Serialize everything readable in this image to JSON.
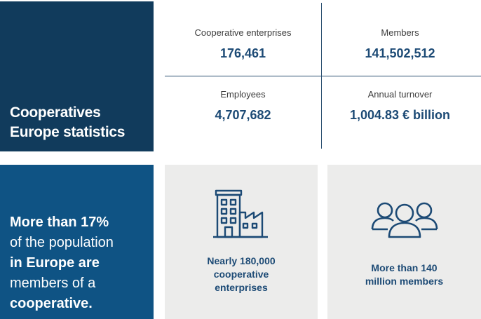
{
  "title": {
    "line1": "Cooperatives",
    "line2": "Europe statistics"
  },
  "stats": [
    {
      "label": "Cooperative enterprises",
      "value": "176,461"
    },
    {
      "label": "Members",
      "value": "141,502,512"
    },
    {
      "label": "Employees",
      "value": "4,707,682"
    },
    {
      "label": "Annual turnover",
      "value": "1,004.83 € billion"
    }
  ],
  "population": {
    "line1": "More than 17%",
    "line2": "of the population",
    "line3": "in Europe are",
    "line4": "members of a",
    "line5": "cooperative."
  },
  "cards": [
    {
      "icon": "factory-building-icon",
      "line1": "Nearly 180,000",
      "line2": "cooperative",
      "line3": "enterprises"
    },
    {
      "icon": "people-group-icon",
      "line1": "More than 140",
      "line2": "million members"
    }
  ],
  "colors": {
    "dark_navy": "#113b5c",
    "blue": "#0f5384",
    "text_blue": "#1c4a75",
    "card_gray": "#ececeb"
  }
}
